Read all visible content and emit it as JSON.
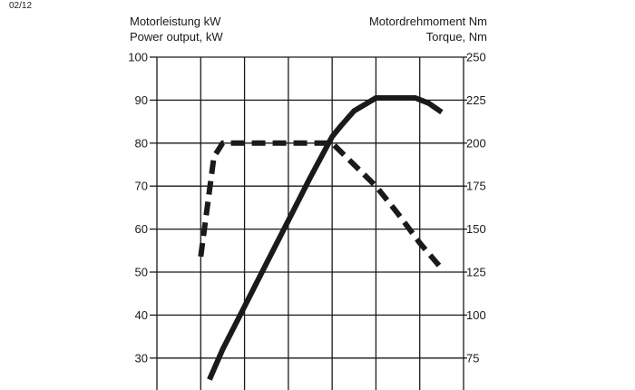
{
  "page_code": "02/12",
  "chart_data": {
    "type": "line",
    "left_axis": {
      "label_de": "Motorleistung kW",
      "label_en": "Power output, kW",
      "range": [
        25,
        100
      ],
      "ticks": [
        30,
        40,
        50,
        60,
        70,
        80,
        90,
        100
      ]
    },
    "right_axis": {
      "label_de": "Motordrehmoment Nm",
      "label_en": "Torque, Nm",
      "range": [
        62.5,
        250
      ],
      "ticks": [
        75,
        100,
        125,
        150,
        175,
        200,
        225,
        250
      ]
    },
    "x_range": [
      0,
      7
    ],
    "x_gridlines": [
      0,
      1,
      2,
      3,
      4,
      5,
      6,
      7
    ],
    "grid": true,
    "series": [
      {
        "axis": "left",
        "style": "solid",
        "color": "#1a1a1a",
        "points": [
          [
            1.2,
            25
          ],
          [
            1.5,
            32
          ],
          [
            2.0,
            42
          ],
          [
            2.5,
            52
          ],
          [
            3.0,
            62
          ],
          [
            3.5,
            72
          ],
          [
            4.0,
            81.5
          ],
          [
            4.2,
            84
          ],
          [
            4.5,
            87.5
          ],
          [
            5.0,
            90.5
          ],
          [
            5.5,
            90.5
          ],
          [
            5.9,
            90.5
          ],
          [
            6.2,
            89.3
          ],
          [
            6.5,
            87.2
          ]
        ]
      },
      {
        "axis": "right",
        "style": "dashed",
        "color": "#1a1a1a",
        "points": [
          [
            1.0,
            134
          ],
          [
            1.3,
            192
          ],
          [
            1.5,
            200
          ],
          [
            2.0,
            200
          ],
          [
            2.5,
            200
          ],
          [
            3.0,
            200
          ],
          [
            3.5,
            200
          ],
          [
            4.0,
            200
          ],
          [
            5.0,
            175
          ],
          [
            5.5,
            159
          ],
          [
            6.0,
            142
          ],
          [
            6.5,
            127
          ]
        ]
      }
    ]
  }
}
